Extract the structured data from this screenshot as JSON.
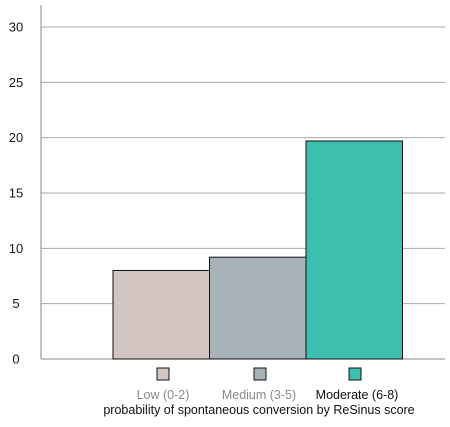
{
  "chart_data": {
    "type": "bar",
    "title": "",
    "xlabel": "probability of spontaneous conversion by ReSinus score",
    "ylabel": "",
    "ylim": [
      0,
      30
    ],
    "yticks": [
      "0",
      "5",
      "10",
      "15",
      "20",
      "25",
      "30"
    ],
    "grid": true,
    "legend_position": "bottom",
    "categories": [
      "Low (0-2)",
      "Medium (3-5)",
      "Moderate (6-8)"
    ],
    "values": [
      8,
      9.2,
      19.7
    ],
    "colors": [
      "#d3c6c2",
      "#a8b3b9",
      "#3dbfb0"
    ],
    "legend_text_colors": [
      "#8a8a8a",
      "#8a8a8a",
      "#111111"
    ]
  }
}
